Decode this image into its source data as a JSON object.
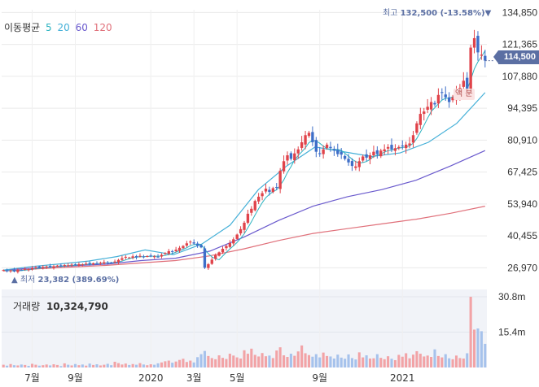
{
  "legend": {
    "title": "이동평균",
    "ma": [
      {
        "label": "5",
        "color": "#2bb3c0"
      },
      {
        "label": "20",
        "color": "#45b0d8"
      },
      {
        "label": "60",
        "color": "#6a5acd"
      },
      {
        "label": "120",
        "color": "#e0707a"
      }
    ]
  },
  "high_label": {
    "prefix": "최고",
    "value": "132,500 (-13.58%)",
    "marker": "▼"
  },
  "low_label": {
    "marker": "▲",
    "prefix": "최저",
    "value": "23,382 (389.69%)"
  },
  "current_price": "114,500",
  "float_label": "액 분",
  "volume": {
    "title": "거래량",
    "value": "10,324,790"
  },
  "colors": {
    "up": "#e0434a",
    "down": "#3e6ec8",
    "up_vol": "#f2a3a6",
    "down_vol": "#a6c2ec",
    "grid": "#eaeaea",
    "vol_bg": "#f1f3f8",
    "axis_text": "#333333"
  },
  "chart_data": {
    "type": "candlestick",
    "title": "",
    "y_ticks": [
      26970,
      40455,
      53940,
      67425,
      80910,
      94395,
      107880,
      121365,
      134850
    ],
    "y_tick_labels": [
      "26,970",
      "40,455",
      "53,940",
      "67,425",
      "80,910",
      "94,395",
      "107,880",
      "121,365",
      "134,850"
    ],
    "ylim": [
      24000,
      136000
    ],
    "x_ticks": [
      {
        "label": "7월",
        "index": 8
      },
      {
        "label": "9월",
        "index": 20
      },
      {
        "label": "2020",
        "index": 41
      },
      {
        "label": "3월",
        "index": 53
      },
      {
        "label": "5월",
        "index": 65
      },
      {
        "label": "9월",
        "index": 88
      },
      {
        "label": "2021",
        "index": 111
      }
    ],
    "count": 135,
    "close": [
      26000,
      25500,
      25800,
      25400,
      26100,
      26000,
      26500,
      26300,
      26800,
      27200,
      27000,
      27300,
      27500,
      27200,
      27600,
      27900,
      27700,
      28100,
      28000,
      28300,
      28200,
      28500,
      28400,
      28700,
      28600,
      28900,
      28800,
      29100,
      29300,
      29100,
      28900,
      29600,
      30300,
      31000,
      31600,
      31300,
      31800,
      31400,
      32000,
      31700,
      31900,
      32100,
      31800,
      31600,
      32400,
      33200,
      34000,
      33700,
      34600,
      35400,
      36200,
      37300,
      38000,
      37200,
      36300,
      35600,
      27000,
      28500,
      30400,
      32300,
      33500,
      35000,
      36200,
      37400,
      39000,
      41000,
      43300,
      46000,
      49800,
      51900,
      55200,
      57000,
      58500,
      60400,
      59000,
      60600,
      61000,
      68000,
      72000,
      74500,
      73000,
      75300,
      77000,
      80000,
      83000,
      84000,
      80000,
      76000,
      75000,
      77000,
      79000,
      77500,
      76500,
      75000,
      74800,
      73000,
      71500,
      70000,
      69800,
      72000,
      74000,
      73500,
      74500,
      76000,
      75000,
      76500,
      77000,
      78000,
      77000,
      77500,
      78000,
      78500,
      79000,
      79500,
      83000,
      88000,
      92000,
      93000,
      95000,
      97000,
      96000,
      100000,
      101000,
      99000,
      97000,
      99000,
      101000,
      103000,
      106000,
      102000,
      120000,
      124000,
      118000,
      117000,
      114500
    ],
    "ma5_end": 101000,
    "ma20_path": [
      26000,
      27500,
      28600,
      29800,
      31700,
      34500,
      32500,
      37000,
      45000,
      60000,
      70000,
      78000,
      76000,
      74000,
      75500,
      80000,
      88000,
      101000
    ],
    "ma60_path": [
      26000,
      27000,
      27800,
      28500,
      30000,
      31000,
      34000,
      40000,
      47000,
      53000,
      57000,
      60000,
      64000,
      70000,
      76500
    ],
    "ma120_path": [
      25600,
      26500,
      27300,
      28000,
      29000,
      30000,
      32000,
      35000,
      38500,
      41500,
      43500,
      45500,
      47500,
      50000,
      53000
    ],
    "volume_max_label": "30.8m",
    "volume_mid_label": "15.4m",
    "volume_ticks": [
      15400000,
      30800000
    ],
    "volume_values_m": [
      1.2,
      0.8,
      1.5,
      1.0,
      0.9,
      1.3,
      1.1,
      0.7,
      1.6,
      1.2,
      0.8,
      1.0,
      1.3,
      0.9,
      1.4,
      1.1,
      0.6,
      1.8,
      1.2,
      0.9,
      1.5,
      1.0,
      1.3,
      0.8,
      1.7,
      1.1,
      1.4,
      0.9,
      1.2,
      1.6,
      1.0,
      2.5,
      1.9,
      1.3,
      1.7,
      1.1,
      1.5,
      1.2,
      1.9,
      1.3,
      1.0,
      1.4,
      1.2,
      1.8,
      2.2,
      2.7,
      3.0,
      2.1,
      2.6,
      3.3,
      3.8,
      2.4,
      3.0,
      2.2,
      4.5,
      5.8,
      7.2,
      5.0,
      4.1,
      3.6,
      5.3,
      4.2,
      3.7,
      6.0,
      5.2,
      4.4,
      3.9,
      7.5,
      6.0,
      8.2,
      5.5,
      4.8,
      6.3,
      4.9,
      5.2,
      4.1,
      7.4,
      8.8,
      5.3,
      4.6,
      6.0,
      5.1,
      7.0,
      9.6,
      6.2,
      5.4,
      4.7,
      5.8,
      4.4,
      6.5,
      5.0,
      4.8,
      3.9,
      5.6,
      4.3,
      3.8,
      5.7,
      4.1,
      3.5,
      6.6,
      4.4,
      5.3,
      3.9,
      4.0,
      5.8,
      4.2,
      3.6,
      4.9,
      3.8,
      3.2,
      5.5,
      4.7,
      6.2,
      4.0,
      5.6,
      7.1,
      6.0,
      4.8,
      5.2,
      4.6,
      7.9,
      5.0,
      4.4,
      5.8,
      4.0,
      3.6,
      5.2,
      4.1,
      3.9,
      6.2,
      30.8,
      16.5,
      17.0,
      15.8,
      10.3
    ]
  }
}
